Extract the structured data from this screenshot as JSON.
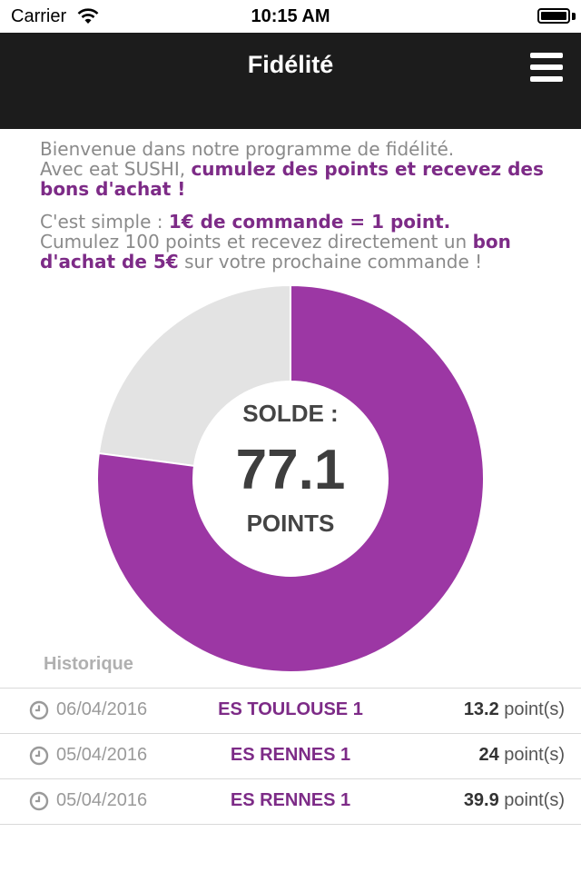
{
  "status_bar": {
    "carrier": "Carrier",
    "time": "10:15 AM"
  },
  "nav": {
    "title": "Fidélité",
    "menu_icon": "hamburger-menu-icon"
  },
  "intro": {
    "line1": "Bienvenue dans notre programme de fidélité.",
    "line2_prefix": "Avec eat SUSHI, ",
    "line2_highlight": "cumulez des points et recevez des bons d'achat !",
    "simple_prefix": "C'est simple : ",
    "simple_highlight": "1€ de commande = 1 point.",
    "cumul_prefix": "Cumulez 100 points et recevez directement un ",
    "cumul_highlight": "bon d'achat de 5€",
    "cumul_suffix": " sur votre prochaine commande !"
  },
  "balance": {
    "label": "SOLDE :",
    "value": "77.1",
    "unit": "POINTS",
    "target": 100,
    "colors": {
      "filled": "#9c37a4",
      "remaining": "#e3e3e3"
    }
  },
  "history": {
    "title": "Historique",
    "items": [
      {
        "date": "06/04/2016",
        "store": "ES TOULOUSE 1",
        "points": "13.2",
        "unit": " point(s)"
      },
      {
        "date": "05/04/2016",
        "store": "ES RENNES 1",
        "points": "24",
        "unit": " point(s)"
      },
      {
        "date": "05/04/2016",
        "store": "ES RENNES 1",
        "points": "39.9",
        "unit": " point(s)"
      }
    ]
  }
}
